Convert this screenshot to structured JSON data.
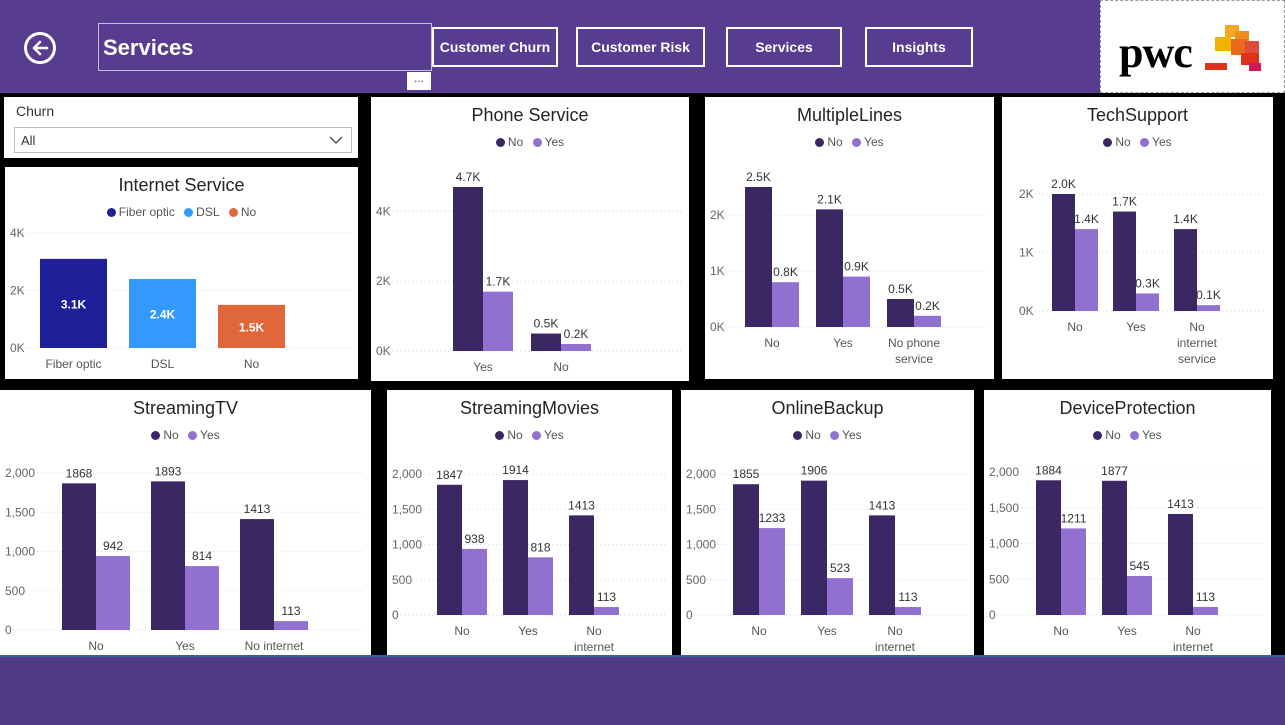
{
  "header": {
    "page_title": "Services",
    "more_label": "...",
    "nav": [
      "Customer Churn",
      "Customer Risk",
      "Services",
      "Insights"
    ],
    "logo_text": "pwc"
  },
  "colors": {
    "header": "#573c8f",
    "no": "#3b2763",
    "yes": "#9170cf",
    "fiber": "#1f1f99",
    "dsl": "#3399ff",
    "internet_no": "#e0673a"
  },
  "slicer": {
    "label": "Churn",
    "value": "All"
  },
  "legend": {
    "no": "No",
    "yes": "Yes"
  },
  "chart_data": [
    {
      "id": "internet-service",
      "type": "bar",
      "title": "Internet Service",
      "categories": [
        "Fiber optic",
        "DSL",
        "No"
      ],
      "values": [
        3100,
        2400,
        1500
      ],
      "labels": [
        "3.1K",
        "2.4K",
        "1.5K"
      ],
      "legend": [
        "Fiber optic",
        "DSL",
        "No"
      ],
      "yticks": [
        "0K",
        "2K",
        "4K"
      ],
      "ylim": [
        0,
        4000
      ]
    },
    {
      "id": "phone-service",
      "type": "bar",
      "title": "Phone Service",
      "categories": [
        "Yes",
        "No"
      ],
      "series": [
        {
          "name": "No",
          "values": [
            4700,
            500
          ],
          "labels": [
            "4.7K",
            "0.5K"
          ]
        },
        {
          "name": "Yes",
          "values": [
            1700,
            200
          ],
          "labels": [
            "1.7K",
            "0.2K"
          ]
        }
      ],
      "yticks": [
        "0K",
        "2K",
        "4K"
      ],
      "ylim": [
        0,
        4700
      ]
    },
    {
      "id": "multiple-lines",
      "type": "bar",
      "title": "MultipleLines",
      "categories": [
        "No",
        "Yes",
        "No phone service"
      ],
      "series": [
        {
          "name": "No",
          "values": [
            2500,
            2100,
            500
          ],
          "labels": [
            "2.5K",
            "2.1K",
            "0.5K"
          ]
        },
        {
          "name": "Yes",
          "values": [
            800,
            900,
            200
          ],
          "labels": [
            "0.8K",
            "0.9K",
            "0.2K"
          ]
        }
      ],
      "yticks": [
        "0K",
        "1K",
        "2K"
      ],
      "ylim": [
        0,
        2500
      ]
    },
    {
      "id": "tech-support",
      "type": "bar",
      "title": "TechSupport",
      "categories": [
        "No",
        "Yes",
        "No internet service"
      ],
      "series": [
        {
          "name": "No",
          "values": [
            2000,
            1700,
            1400
          ],
          "labels": [
            "2.0K",
            "1.7K",
            "1.4K"
          ]
        },
        {
          "name": "Yes",
          "values": [
            1400,
            300,
            100
          ],
          "labels": [
            "1.4K",
            "0.3K",
            "0.1K"
          ]
        }
      ],
      "yticks": [
        "0K",
        "1K",
        "2K"
      ],
      "ylim": [
        0,
        2000
      ]
    },
    {
      "id": "streaming-tv",
      "type": "bar",
      "title": "StreamingTV",
      "categories": [
        "No",
        "Yes",
        "No internet service"
      ],
      "series": [
        {
          "name": "No",
          "values": [
            1868,
            1893,
            1413
          ],
          "labels": [
            "1868",
            "1893",
            "1413"
          ]
        },
        {
          "name": "Yes",
          "values": [
            942,
            814,
            113
          ],
          "labels": [
            "942",
            "814",
            "113"
          ]
        }
      ],
      "yticks": [
        "0",
        "500",
        "1,000",
        "1,500",
        "2,000"
      ],
      "ylim": [
        0,
        2000
      ]
    },
    {
      "id": "streaming-movies",
      "type": "bar",
      "title": "StreamingMovies",
      "categories": [
        "No",
        "Yes",
        "No internet service"
      ],
      "series": [
        {
          "name": "No",
          "values": [
            1847,
            1914,
            1413
          ],
          "labels": [
            "1847",
            "1914",
            "1413"
          ]
        },
        {
          "name": "Yes",
          "values": [
            938,
            818,
            113
          ],
          "labels": [
            "938",
            "818",
            "113"
          ]
        }
      ],
      "yticks": [
        "0",
        "500",
        "1,000",
        "1,500",
        "2,000"
      ],
      "ylim": [
        0,
        2000
      ]
    },
    {
      "id": "online-backup",
      "type": "bar",
      "title": "OnlineBackup",
      "categories": [
        "No",
        "Yes",
        "No internet service"
      ],
      "series": [
        {
          "name": "No",
          "values": [
            1855,
            1906,
            1413
          ],
          "labels": [
            "1855",
            "1906",
            "1413"
          ]
        },
        {
          "name": "Yes",
          "values": [
            1233,
            523,
            113
          ],
          "labels": [
            "1233",
            "523",
            "113"
          ]
        }
      ],
      "yticks": [
        "0",
        "500",
        "1,000",
        "1,500",
        "2,000"
      ],
      "ylim": [
        0,
        2000
      ]
    },
    {
      "id": "device-protection",
      "type": "bar",
      "title": "DeviceProtection",
      "categories": [
        "No",
        "Yes",
        "No internet service"
      ],
      "series": [
        {
          "name": "No",
          "values": [
            1884,
            1877,
            1413
          ],
          "labels": [
            "1884",
            "1877",
            "1413"
          ]
        },
        {
          "name": "Yes",
          "values": [
            1211,
            545,
            113
          ],
          "labels": [
            "1211",
            "545",
            "113"
          ]
        }
      ],
      "yticks": [
        "0",
        "500",
        "1,000",
        "1,500",
        "2,000"
      ],
      "ylim": [
        0,
        2000
      ]
    }
  ]
}
